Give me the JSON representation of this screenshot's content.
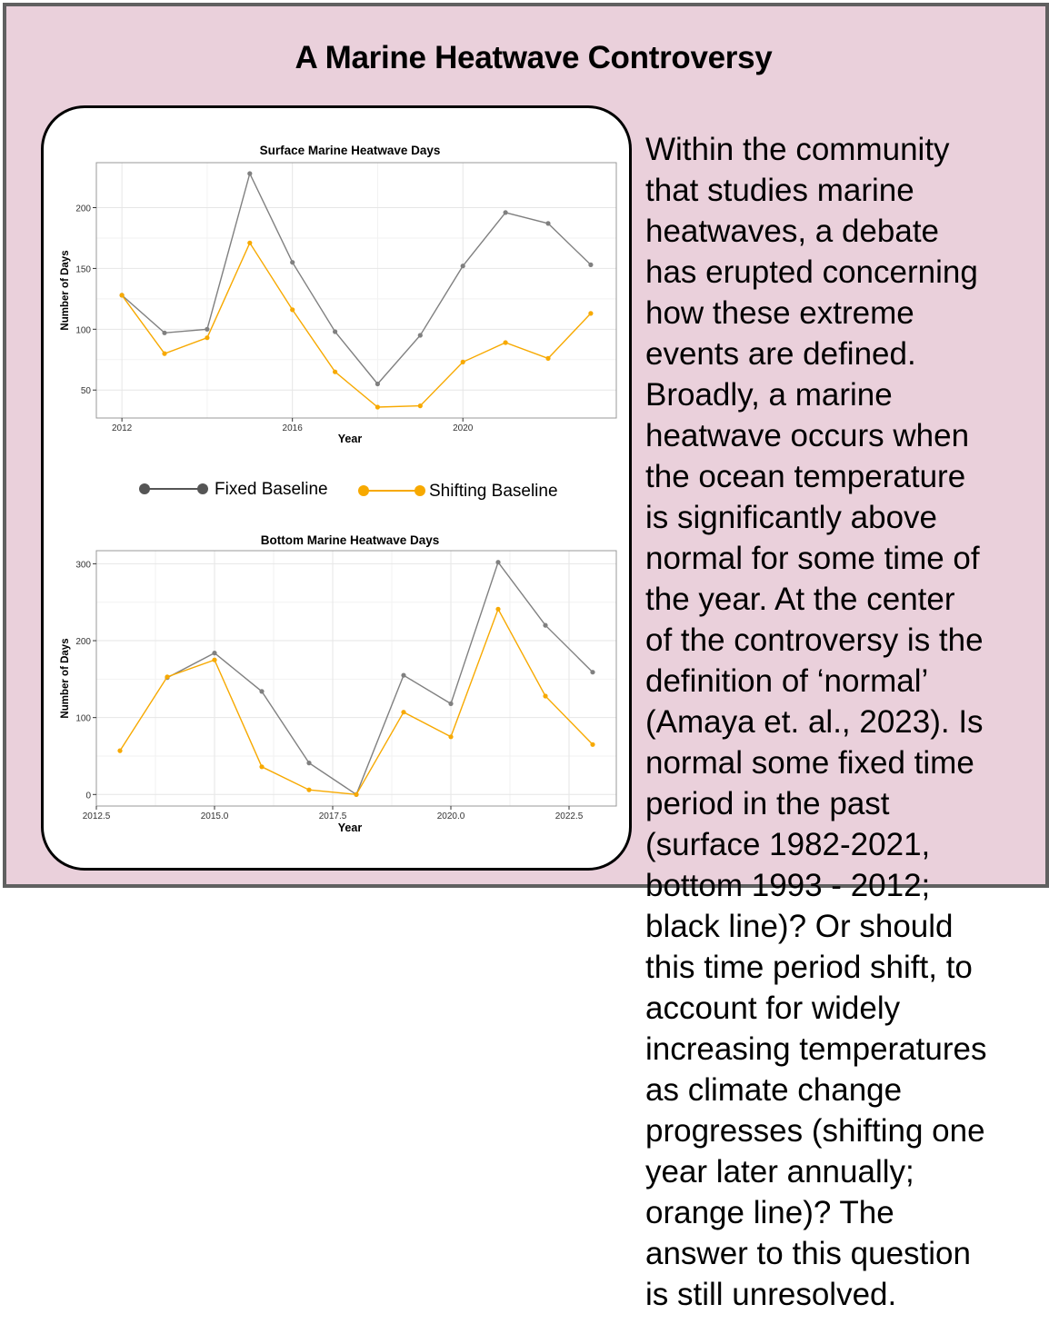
{
  "title": "A Marine Heatwave Controversy",
  "legend": {
    "fixed_label": "Fixed Baseline",
    "shifting_label": "Shifting Baseline"
  },
  "colors": {
    "panel_background": "#ead0db",
    "fixed": "#808080",
    "fixed_legend": "#555555",
    "shifting": "#f7a900"
  },
  "body_lines": [
    "Within the community",
    "that studies marine",
    "heatwaves, a debate",
    "has erupted concerning",
    "how these extreme",
    "events are defined.",
    "Broadly, a marine",
    "heatwave occurs when",
    "the ocean temperature",
    "is significantly above",
    "normal for some time of",
    "the year.  At the center",
    "of the controversy is the",
    "definition of ‘normal’",
    "(Amaya et. al., 2023). Is",
    "normal some fixed time",
    "period in the past",
    "(surface 1982-2021,",
    "bottom 1993 - 2012;",
    "black line)?  Or should",
    "this time period shift, to",
    "account for widely",
    "increasing temperatures",
    "as climate change",
    "progresses (shifting one",
    "year later annually;",
    "orange line)?  The",
    "answer to this question",
    "is still unresolved."
  ],
  "chart_data": [
    {
      "type": "line",
      "title": "Surface Marine Heatwave Days",
      "xlabel": "Year",
      "ylabel": "Number of Days",
      "x": [
        2012,
        2013,
        2014,
        2015,
        2016,
        2017,
        2018,
        2019,
        2020,
        2021,
        2022,
        2023
      ],
      "xlim": [
        2011.4,
        2023.6
      ],
      "ylim": [
        27,
        237
      ],
      "xticks": [
        2012,
        2016,
        2020
      ],
      "xtick_labels": [
        "2012",
        "2016",
        "2020"
      ],
      "yticks": [
        50,
        100,
        150,
        200
      ],
      "ytick_labels": [
        "50",
        "100",
        "150",
        "200"
      ],
      "grid": true,
      "series": [
        {
          "name": "Fixed Baseline",
          "values": [
            128,
            97,
            100,
            228,
            155,
            98,
            55,
            95,
            152,
            196,
            187,
            153
          ]
        },
        {
          "name": "Shifting Baseline",
          "values": [
            128,
            80,
            93,
            171,
            116,
            65,
            36,
            37,
            73,
            89,
            76,
            113
          ]
        }
      ]
    },
    {
      "type": "line",
      "title": "Bottom Marine Heatwave Days",
      "xlabel": "Year",
      "ylabel": "Number of Days",
      "x": [
        2013,
        2014,
        2015,
        2016,
        2017,
        2018,
        2019,
        2020,
        2021,
        2022,
        2023
      ],
      "xlim": [
        2012.5,
        2023.5
      ],
      "ylim": [
        -15,
        317
      ],
      "xticks": [
        2012.5,
        2015.0,
        2017.5,
        2020.0,
        2022.5
      ],
      "xtick_labels": [
        "2012.5",
        "2015.0",
        "2017.5",
        "2020.0",
        "2022.5"
      ],
      "yticks": [
        0,
        100,
        200,
        300
      ],
      "ytick_labels": [
        "0",
        "100",
        "200",
        "300"
      ],
      "grid": true,
      "series": [
        {
          "name": "Fixed Baseline",
          "values": [
            null,
            152,
            184,
            134,
            41,
            0,
            155,
            118,
            302,
            220,
            159
          ]
        },
        {
          "name": "Shifting Baseline",
          "values": [
            57,
            153,
            175,
            36,
            6,
            0,
            107,
            75,
            241,
            128,
            65
          ]
        }
      ]
    }
  ]
}
